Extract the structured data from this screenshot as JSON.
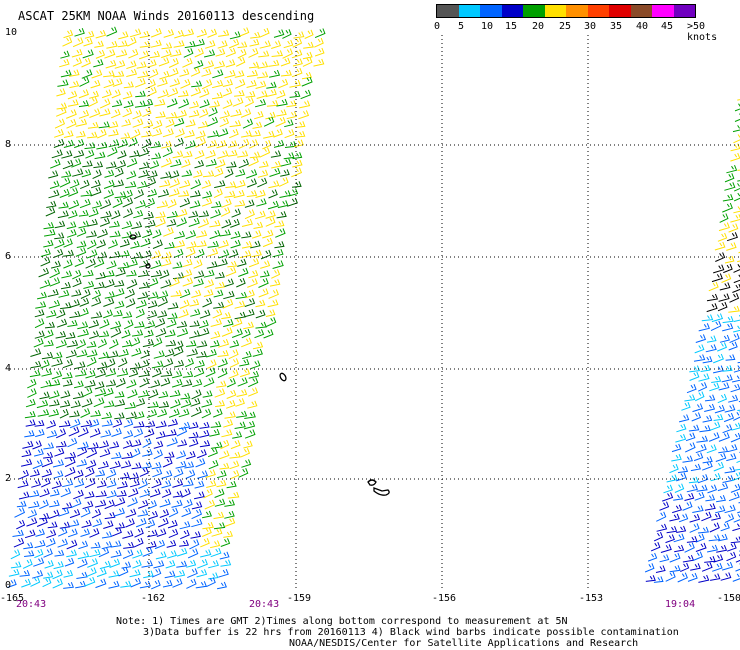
{
  "title": "ASCAT 25KM NOAA Winds 20160113 descending",
  "legend": {
    "colors": [
      "#555555",
      "#00c8ff",
      "#0064ff",
      "#0000c8",
      "#00a000",
      "#ffe000",
      "#ff9000",
      "#ff4000",
      "#e00000",
      "#8a4a28",
      "#ff00ff",
      "#7000c0"
    ],
    "labels": [
      "0",
      "5",
      "10",
      "15",
      "20",
      "25",
      "30",
      "35",
      "40",
      "45",
      ">50 knots"
    ]
  },
  "lat_labels": [
    "10",
    "8",
    "6",
    "4",
    "2",
    "0"
  ],
  "lon_labels": [
    "-165",
    "-162",
    "-159",
    "-156",
    "-153",
    "-150"
  ],
  "times": [
    "20:43",
    "20:43",
    "19:04"
  ],
  "notes": {
    "line1": "Note: 1) Times are GMT 2)Times along bottom correspond to measurement at 5N",
    "line2": "3)Data buffer is 22 hrs from 20160113 4) Black wind barbs indicate possible contamination",
    "line3": "NOAA/NESDIS/Center for Satellite Applications and Research"
  },
  "map": {
    "gridline_color": "#000000",
    "barb_colors": {
      "yellow": "#ffe000",
      "green": "#00a000",
      "dark_green": "#006400",
      "blue": "#0064ff",
      "navy": "#0000c8",
      "cyan": "#00c8ff",
      "black": "#000000"
    }
  }
}
